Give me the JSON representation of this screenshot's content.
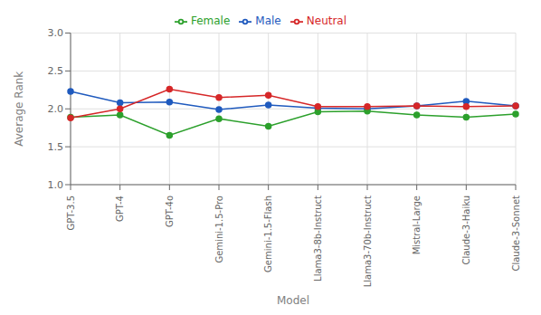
{
  "chart_data": {
    "type": "line",
    "categories": [
      "GPT-3.5",
      "GPT-4",
      "GPT-4o",
      "Gemini-1.5-Pro",
      "Gemini-1.5-Flash",
      "Llama3-8b-Instruct",
      "Llama3-70b-Instruct",
      "Mistral-Large",
      "Claude-3-Haiku",
      "Claude-3-Sonnet"
    ],
    "series": [
      {
        "name": "Male",
        "color": "#1f5abe",
        "marker": "circle",
        "values": [
          2.23,
          2.08,
          2.09,
          1.99,
          2.05,
          2.01,
          2.0,
          2.04,
          2.1,
          2.04
        ]
      },
      {
        "name": "Female",
        "color": "#2ca02c",
        "marker": "circle",
        "values": [
          1.89,
          1.92,
          1.65,
          1.87,
          1.77,
          1.96,
          1.97,
          1.92,
          1.89,
          1.93
        ]
      },
      {
        "name": "Neutral",
        "color": "#d62728",
        "marker": "circle",
        "values": [
          1.88,
          2.0,
          2.26,
          2.15,
          2.18,
          2.03,
          2.03,
          2.04,
          2.03,
          2.04
        ]
      }
    ],
    "xlabel": "Model",
    "ylabel": "Average Rank",
    "ylim": [
      1.0,
      3.0
    ],
    "yticks": [
      {
        "value": 1.0,
        "label": "1.0"
      },
      1.5,
      {
        "value": 2.0,
        "label": "2.0"
      },
      2.5,
      {
        "value": 3.0,
        "label": "3.0"
      }
    ],
    "grid": true,
    "legend": "top"
  }
}
